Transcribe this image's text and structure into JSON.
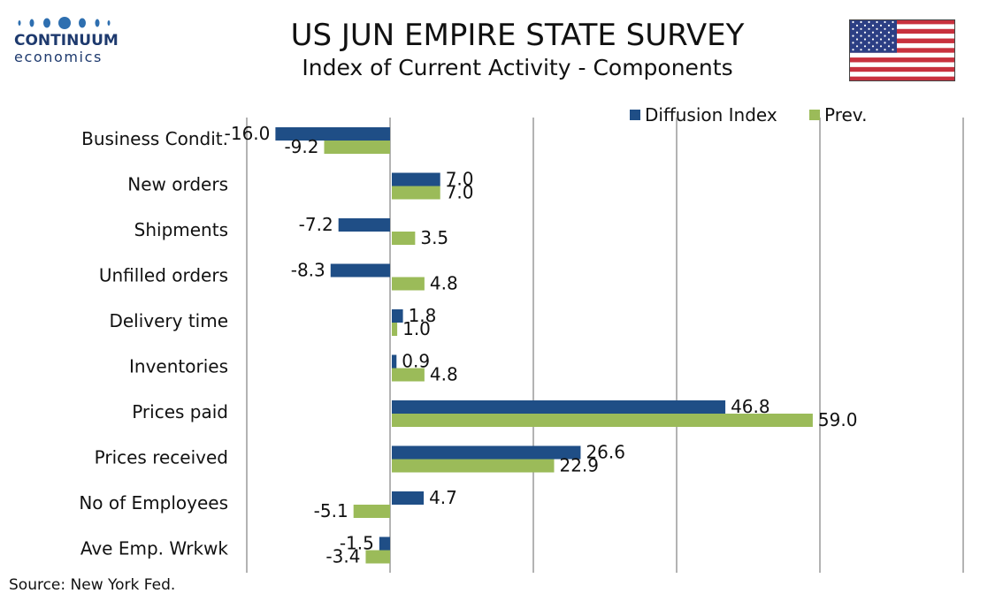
{
  "brand": {
    "name": "CONTINUUM",
    "sub": "economics"
  },
  "header": {
    "title": "US JUN EMPIRE STATE SURVEY",
    "subtitle": "Index of Current Activity - Components"
  },
  "source": "Source: New York Fed.",
  "colors": {
    "current": "#1f4e86",
    "previous": "#9bbb59",
    "grid": "#b3b3b3"
  },
  "chart_data": {
    "type": "bar",
    "orientation": "horizontal",
    "categories": [
      "Business Condit.",
      "New orders ",
      "Shipments ",
      "Unfilled orders",
      "Delivery time",
      "Inventories",
      "Prices paid",
      "Prices received",
      "No of Employees",
      "Ave Emp. Wrkwk"
    ],
    "series": [
      {
        "name": "Diffusion Index",
        "values": [
          -16.0,
          7.0,
          -7.2,
          -8.3,
          1.8,
          0.9,
          46.8,
          26.6,
          4.7,
          -1.5
        ],
        "labels": [
          "-16.0",
          "7.0",
          "-7.2",
          "-8.3",
          "1.8",
          "0.9",
          "46.8",
          "26.6",
          "4.7",
          "-1.5"
        ]
      },
      {
        "name": "Prev.",
        "values": [
          -9.2,
          7.0,
          3.5,
          4.8,
          1.0,
          4.8,
          59.0,
          22.9,
          -5.1,
          -3.4
        ],
        "labels": [
          "-9.2",
          "7.0",
          "3.5",
          "4.8",
          "1.0",
          "4.8",
          "59.0",
          "22.9",
          "-5.1",
          "-3.4"
        ]
      }
    ],
    "xlim": [
      -20,
      80
    ],
    "gridlines_x": [
      -20,
      0,
      20,
      40,
      60,
      80
    ],
    "grid": true,
    "legend": "top-right"
  }
}
